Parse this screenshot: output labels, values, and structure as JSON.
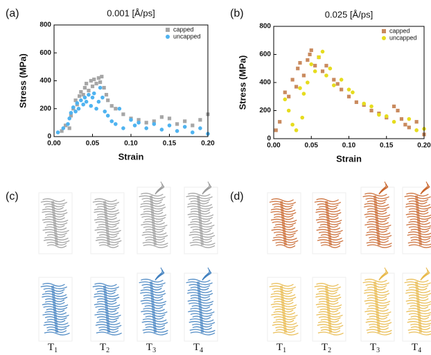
{
  "panel_labels": [
    "(a)",
    "(b)",
    "(c)",
    "(d)"
  ],
  "chart_data": [
    {
      "type": "scatter",
      "title": "0.001 [Å/ps]",
      "x_label": "Strain",
      "y_label": "Stress (MPa)",
      "xlim": [
        0,
        0.2
      ],
      "xticks": [
        {
          "value": 0,
          "label": "0.00"
        },
        {
          "value": 0.05,
          "label": "0.05"
        },
        {
          "value": 0.1,
          "label": "0.10"
        },
        {
          "value": 0.15,
          "label": "0.15"
        },
        {
          "value": 0.2,
          "label": "0.20"
        }
      ],
      "ylim": [
        0,
        800
      ],
      "yticks": [
        0,
        200,
        400,
        600,
        800
      ],
      "legend": "top-right",
      "series": [
        {
          "name": "capped",
          "color": "#a6a6a6",
          "marker": "square",
          "x": [
            0.01,
            0.015,
            0.02,
            0.022,
            0.025,
            0.028,
            0.03,
            0.033,
            0.035,
            0.038,
            0.04,
            0.042,
            0.045,
            0.048,
            0.05,
            0.052,
            0.055,
            0.058,
            0.06,
            0.062,
            0.065,
            0.068,
            0.07,
            0.075,
            0.08,
            0.09,
            0.1,
            0.11,
            0.12,
            0.13,
            0.14,
            0.15,
            0.16,
            0.17,
            0.18,
            0.19,
            0.2
          ],
          "values": [
            40,
            80,
            60,
            150,
            200,
            260,
            230,
            290,
            320,
            300,
            350,
            380,
            330,
            400,
            360,
            410,
            380,
            420,
            390,
            430,
            350,
            300,
            260,
            220,
            200,
            160,
            130,
            120,
            100,
            110,
            140,
            130,
            90,
            110,
            80,
            120,
            160
          ]
        },
        {
          "name": "uncapped",
          "color": "#4fb3f0",
          "marker": "circle",
          "x": [
            0.005,
            0.012,
            0.018,
            0.02,
            0.022,
            0.025,
            0.028,
            0.03,
            0.032,
            0.035,
            0.038,
            0.04,
            0.042,
            0.045,
            0.048,
            0.05,
            0.052,
            0.055,
            0.058,
            0.06,
            0.063,
            0.066,
            0.07,
            0.075,
            0.08,
            0.085,
            0.09,
            0.1,
            0.105,
            0.11,
            0.12,
            0.13,
            0.14,
            0.15,
            0.16,
            0.17,
            0.18,
            0.19,
            0.2
          ],
          "values": [
            30,
            60,
            90,
            130,
            170,
            210,
            180,
            240,
            200,
            260,
            230,
            280,
            250,
            300,
            220,
            280,
            310,
            200,
            250,
            350,
            280,
            180,
            150,
            110,
            90,
            200,
            60,
            120,
            80,
            100,
            60,
            90,
            50,
            80,
            40,
            70,
            30,
            60,
            20
          ]
        }
      ]
    },
    {
      "type": "scatter",
      "title": "0.025 [Å/ps]",
      "x_label": "Strain",
      "y_label": "Stress (MPa)",
      "xlim": [
        0,
        0.2
      ],
      "xticks": [
        {
          "value": 0,
          "label": "0.00"
        },
        {
          "value": 0.05,
          "label": "0.05"
        },
        {
          "value": 0.1,
          "label": "0.10"
        },
        {
          "value": 0.15,
          "label": "0.15"
        },
        {
          "value": 0.2,
          "label": "0.20"
        }
      ],
      "ylim": [
        0,
        800
      ],
      "yticks": [
        0,
        200,
        400,
        600,
        800
      ],
      "legend": "top-right",
      "series": [
        {
          "name": "capped",
          "color": "#c98a5e",
          "marker": "square",
          "x": [
            0.003,
            0.008,
            0.015,
            0.02,
            0.025,
            0.03,
            0.032,
            0.035,
            0.04,
            0.045,
            0.048,
            0.05,
            0.055,
            0.06,
            0.065,
            0.07,
            0.08,
            0.085,
            0.09,
            0.1,
            0.11,
            0.12,
            0.13,
            0.14,
            0.15,
            0.16,
            0.165,
            0.17,
            0.175,
            0.18,
            0.19,
            0.2
          ],
          "values": [
            60,
            120,
            330,
            300,
            420,
            370,
            500,
            540,
            450,
            560,
            600,
            630,
            520,
            580,
            480,
            520,
            420,
            390,
            350,
            300,
            260,
            240,
            200,
            180,
            150,
            230,
            200,
            140,
            100,
            80,
            120,
            30
          ]
        },
        {
          "name": "uncapped",
          "color": "#e6dc1e",
          "marker": "circle",
          "x": [
            0.015,
            0.02,
            0.025,
            0.03,
            0.035,
            0.038,
            0.04,
            0.045,
            0.05,
            0.055,
            0.06,
            0.065,
            0.07,
            0.075,
            0.08,
            0.09,
            0.1,
            0.105,
            0.12,
            0.13,
            0.14,
            0.15,
            0.16,
            0.18,
            0.19,
            0.2
          ],
          "values": [
            280,
            200,
            100,
            60,
            360,
            150,
            320,
            400,
            530,
            480,
            580,
            620,
            450,
            500,
            380,
            420,
            350,
            330,
            250,
            230,
            170,
            160,
            120,
            140,
            60,
            70
          ]
        }
      ]
    }
  ],
  "structure_labels": [
    [
      {
        "base": "T",
        "sub": "1"
      },
      {
        "base": "T",
        "sub": "2"
      },
      {
        "base": "T",
        "sub": "3"
      },
      {
        "base": "T",
        "sub": "4"
      }
    ],
    [
      {
        "base": "T",
        "sub": "1"
      },
      {
        "base": "T",
        "sub": "2"
      },
      {
        "base": "T",
        "sub": "3"
      },
      {
        "base": "T",
        "sub": "4"
      }
    ]
  ]
}
